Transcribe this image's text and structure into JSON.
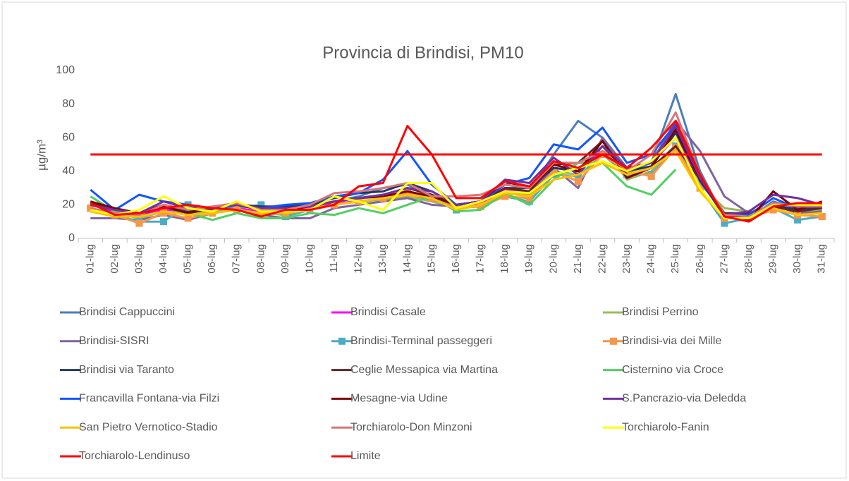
{
  "chart_data": {
    "type": "line",
    "title": "Provincia di Brindisi, PM10",
    "y_label": "µg/m³",
    "categories": [
      "01-lug",
      "02-lug",
      "03-lug",
      "04-lug",
      "05-lug",
      "06-lug",
      "07-lug",
      "08-lug",
      "09-lug",
      "10-lug",
      "11-lug",
      "12-lug",
      "13-lug",
      "14-lug",
      "15-lug",
      "16-lug",
      "17-lug",
      "18-lug",
      "19-lug",
      "20-lug",
      "21-lug",
      "22-lug",
      "23-lug",
      "24-lug",
      "25-lug",
      "26-lug",
      "27-lug",
      "28-lug",
      "29-lug",
      "30-lug",
      "31-lug"
    ],
    "ylim": [
      0,
      100
    ],
    "yticks": [
      0,
      20,
      40,
      60,
      80,
      100
    ],
    "grid": false,
    "legend": "bottom",
    "series": [
      {
        "name": "Brindisi Cappuccini",
        "color": "#4a7ebb",
        "values": [
          22,
          17,
          13,
          18,
          17,
          16,
          20,
          17,
          15,
          18,
          22,
          25,
          30,
          32,
          25,
          18,
          20,
          30,
          28,
          50,
          70,
          60,
          40,
          45,
          86,
          40,
          12,
          12,
          22,
          18,
          20
        ]
      },
      {
        "name": "Brindisi Casale",
        "color": "#ff00ff",
        "values": [
          20,
          16,
          14,
          17,
          16,
          17,
          18,
          16,
          16,
          18,
          21,
          22,
          24,
          27,
          22,
          19,
          21,
          29,
          27,
          42,
          40,
          52,
          42,
          45,
          60,
          35,
          14,
          14,
          20,
          17,
          18
        ]
      },
      {
        "name": "Brindisi Perrino",
        "color": "#9bbb59",
        "values": [
          18,
          15,
          12,
          16,
          15,
          16,
          17,
          15,
          14,
          17,
          20,
          22,
          23,
          25,
          22,
          18,
          20,
          27,
          26,
          40,
          38,
          55,
          35,
          40,
          56,
          32,
          18,
          16,
          19,
          16,
          17
        ]
      },
      {
        "name": "Brindisi-SISRI",
        "color": "#8064a2",
        "values": [
          12,
          12,
          11,
          14,
          11,
          15,
          17,
          14,
          12,
          12,
          18,
          20,
          22,
          24,
          20,
          19,
          22,
          30,
          28,
          42,
          30,
          60,
          42,
          45,
          70,
          52,
          25,
          15,
          20,
          15,
          16
        ]
      },
      {
        "name": "Brindisi-Terminal passeggeri",
        "color": "#4bacc6",
        "marker": "square",
        "values": [
          18,
          14,
          10,
          10,
          20,
          17,
          18,
          20,
          13,
          17,
          20,
          22,
          24,
          28,
          24,
          17,
          20,
          25,
          22,
          38,
          37,
          50,
          38,
          38,
          55,
          30,
          9,
          12,
          18,
          11,
          13
        ]
      },
      {
        "name": "Brindisi-via dei Mille",
        "color": "#f79646",
        "marker": "square",
        "values": [
          18,
          14,
          9,
          15,
          12,
          15,
          17,
          15,
          15,
          18,
          20,
          22,
          24,
          27,
          24,
          18,
          19,
          25,
          24,
          40,
          34,
          50,
          40,
          37,
          54,
          30,
          12,
          12,
          17,
          14,
          13
        ]
      },
      {
        "name": "Brindisi via Taranto",
        "color": "#1f3864",
        "values": [
          20,
          17,
          14,
          19,
          16,
          18,
          20,
          19,
          19,
          20,
          24,
          27,
          28,
          33,
          28,
          20,
          22,
          30,
          30,
          42,
          40,
          55,
          40,
          43,
          63,
          35,
          13,
          13,
          20,
          17,
          19
        ]
      },
      {
        "name": "Ceglie Messapica via Martina",
        "color": "#632523",
        "values": [
          21,
          17,
          15,
          20,
          17,
          18,
          20,
          18,
          17,
          19,
          22,
          24,
          26,
          30,
          26,
          20,
          22,
          30,
          28,
          44,
          45,
          58,
          38,
          42,
          55,
          35,
          15,
          15,
          19,
          16,
          18
        ]
      },
      {
        "name": "Cisternino via Croce",
        "color": "#50d060",
        "values": [
          25,
          16,
          13,
          16,
          15,
          11,
          15,
          12,
          12,
          15,
          14,
          18,
          15,
          20,
          25,
          16,
          17,
          27,
          20,
          35,
          45,
          45,
          31,
          26,
          41,
          null,
          null,
          null,
          null,
          null,
          null
        ]
      },
      {
        "name": "Francavilla Fontana-via Filzi",
        "color": "#1155ff",
        "values": [
          29,
          17,
          26,
          22,
          20,
          17,
          20,
          18,
          20,
          21,
          25,
          27,
          35,
          52,
          32,
          20,
          22,
          32,
          36,
          56,
          53,
          66,
          45,
          50,
          68,
          34,
          14,
          14,
          24,
          18,
          20
        ]
      },
      {
        "name": "Mesagne-via Udine",
        "color": "#7f0000",
        "values": [
          22,
          18,
          15,
          19,
          15,
          18,
          20,
          17,
          17,
          19,
          22,
          24,
          25,
          28,
          25,
          20,
          22,
          34,
          30,
          44,
          40,
          58,
          36,
          42,
          65,
          35,
          14,
          11,
          28,
          17,
          22
        ]
      },
      {
        "name": "S.Pancrazio-via Deledda",
        "color": "#7030a0",
        "values": [
          20,
          17,
          15,
          22,
          18,
          18,
          20,
          18,
          18,
          19,
          22,
          24,
          26,
          30,
          28,
          20,
          22,
          35,
          33,
          48,
          38,
          55,
          42,
          45,
          67,
          36,
          14,
          16,
          26,
          24,
          20
        ]
      },
      {
        "name": "San Pietro Vernotico-Stadio",
        "color": "#ffc000",
        "values": [
          16,
          13,
          13,
          16,
          14,
          15,
          17,
          15,
          15,
          17,
          20,
          22,
          24,
          26,
          24,
          17,
          20,
          27,
          25,
          35,
          38,
          45,
          38,
          42,
          52,
          28,
          12,
          12,
          18,
          14,
          15
        ]
      },
      {
        "name": "Torchiarolo-Don Minzoni",
        "color": "#d9777a",
        "values": [
          18,
          15,
          14,
          20,
          17,
          19,
          21,
          17,
          17,
          20,
          27,
          28,
          30,
          33,
          25,
          25,
          26,
          32,
          30,
          45,
          45,
          52,
          40,
          50,
          75,
          38,
          14,
          13,
          21,
          19,
          19
        ]
      },
      {
        "name": "Torchiarolo-Fanin",
        "color": "#ffff00",
        "values": [
          17,
          14,
          17,
          25,
          18,
          16,
          22,
          16,
          16,
          17,
          25,
          22,
          17,
          33,
          33,
          18,
          22,
          28,
          27,
          38,
          42,
          46,
          40,
          46,
          60,
          30,
          12,
          12,
          20,
          20,
          20
        ]
      },
      {
        "name": "Torchiarolo-Lendinuso",
        "color": "#ff0000",
        "values": [
          21,
          14,
          15,
          18,
          20,
          18,
          17,
          13,
          17,
          17,
          20,
          31,
          33,
          67,
          50,
          24,
          24,
          34,
          31,
          46,
          42,
          50,
          42,
          54,
          70,
          38,
          13,
          10,
          19,
          21,
          21
        ]
      },
      {
        "name": "Limite",
        "color": "#ff0000",
        "values": [
          50,
          50,
          50,
          50,
          50,
          50,
          50,
          50,
          50,
          50,
          50,
          50,
          50,
          50,
          50,
          50,
          50,
          50,
          50,
          50,
          50,
          50,
          50,
          50,
          50,
          50,
          50,
          50,
          50,
          50,
          50
        ]
      }
    ]
  }
}
